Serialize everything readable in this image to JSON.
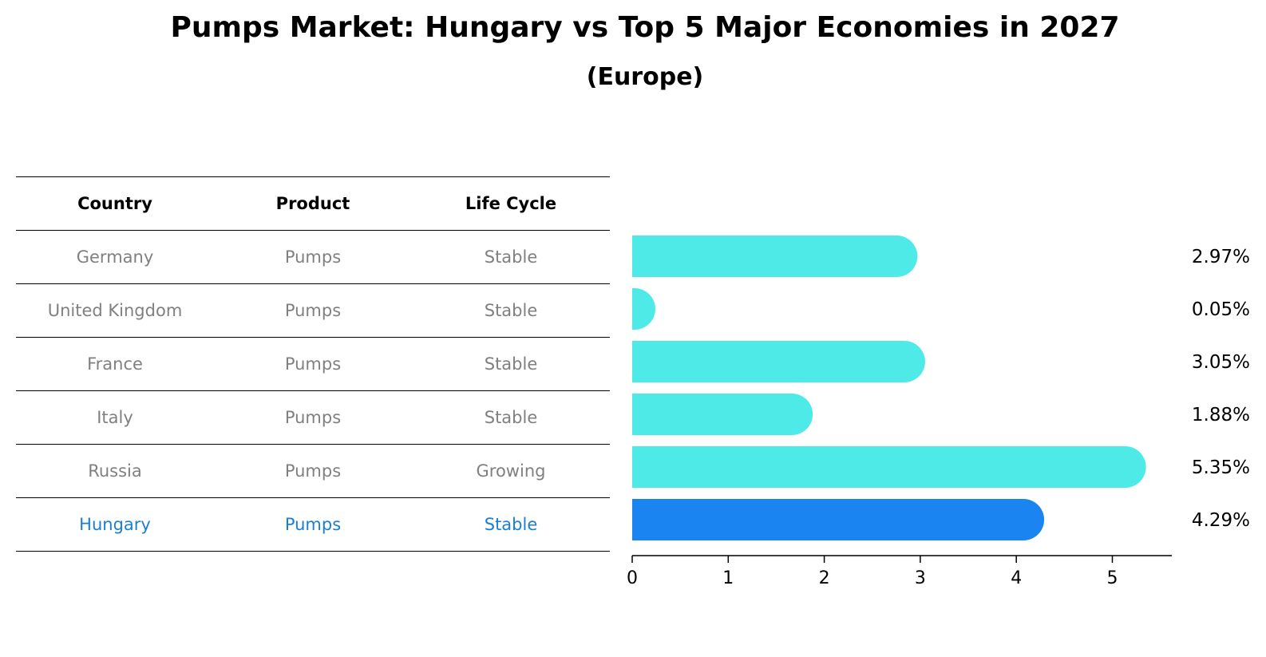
{
  "title": "Pumps Market: Hungary vs Top 5 Major Economies in 2027",
  "subtitle": "(Europe)",
  "table": {
    "headers": [
      "Country",
      "Product",
      "Life Cycle"
    ],
    "rows": [
      {
        "country": "Germany",
        "product": "Pumps",
        "life_cycle": "Stable"
      },
      {
        "country": "United Kingdom",
        "product": "Pumps",
        "life_cycle": "Stable"
      },
      {
        "country": "France",
        "product": "Pumps",
        "life_cycle": "Stable"
      },
      {
        "country": "Italy",
        "product": "Pumps",
        "life_cycle": "Stable"
      },
      {
        "country": "Russia",
        "product": "Pumps",
        "life_cycle": "Growing"
      },
      {
        "country": "Hungary",
        "product": "Pumps",
        "life_cycle": "Stable"
      }
    ]
  },
  "colors": {
    "bar": "#4eeae8",
    "highlight_bar": "#1a85f0",
    "highlight_text": "#1a7fd4",
    "row_text": "#808080"
  },
  "chart_data": {
    "type": "bar",
    "orientation": "horizontal",
    "categories": [
      "Germany",
      "United Kingdom",
      "France",
      "Italy",
      "Russia",
      "Hungary"
    ],
    "values": [
      2.97,
      0.05,
      3.05,
      1.88,
      5.35,
      4.29
    ],
    "value_labels": [
      "2.97%",
      "0.05%",
      "3.05%",
      "1.88%",
      "5.35%",
      "4.29%"
    ],
    "highlight_index": 5,
    "xlim": [
      0,
      5.62
    ],
    "xticks": [
      0,
      1,
      2,
      3,
      4,
      5
    ],
    "xtick_labels": [
      "0",
      "1",
      "2",
      "3",
      "4",
      "5"
    ],
    "grid": false
  }
}
